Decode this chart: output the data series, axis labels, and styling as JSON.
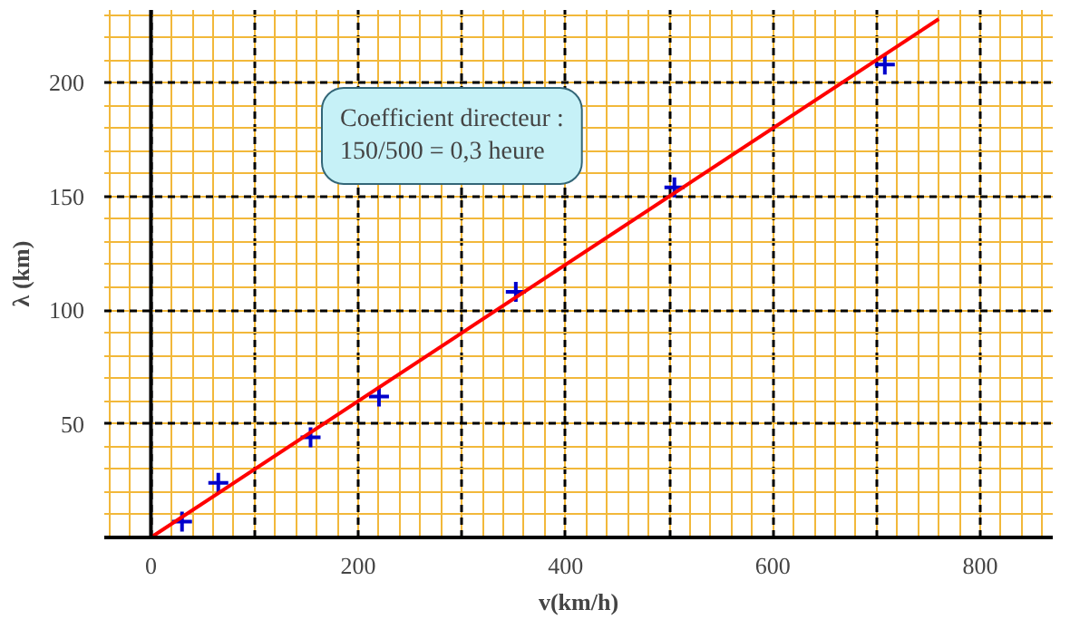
{
  "chart_data": {
    "type": "scatter",
    "xlabel": "v(km/h)",
    "ylabel": "λ (km)",
    "xlim": [
      -45,
      870
    ],
    "ylim": [
      0,
      232
    ],
    "xticks": [
      0,
      {
        "value": 100,
        "label": null
      },
      200,
      {
        "value": 300,
        "label": null
      },
      400,
      {
        "value": 500,
        "label": null
      },
      600,
      {
        "value": 700,
        "label": null
      },
      800
    ],
    "yticks": [
      50,
      100,
      150,
      200
    ],
    "grid": true,
    "marker": "cross",
    "series": [
      {
        "color": "#0000cc",
        "x": [
          30,
          65,
          154,
          220,
          352,
          505,
          708
        ],
        "values": [
          7,
          24,
          44,
          62,
          108,
          154,
          208
        ]
      },
      {
        "type": "line",
        "color": "#ff0000",
        "x": [
          0,
          760
        ],
        "values": [
          0,
          228
        ],
        "line_style": "solid",
        "marker": "none"
      }
    ],
    "annotations": [
      "Coefficient directeur :\n150/500 = 0,3 heure"
    ]
  }
}
